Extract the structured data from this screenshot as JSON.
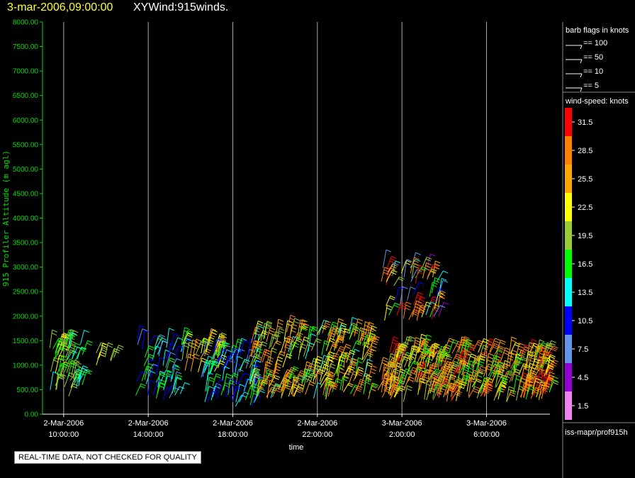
{
  "header": {
    "date": "3-mar-2006,09:00:00",
    "title": "XYWind:915winds."
  },
  "chart_data": {
    "type": "scatter",
    "title": "XYWind:915winds.",
    "xlabel": "time",
    "ylabel": "915 Profiler Altitude (m agl)",
    "ylim": [
      0,
      8000
    ],
    "y_ticks": [
      "0.00",
      "500.00",
      "1000.00",
      "1500.00",
      "2000.00",
      "2500.00",
      "3000.00",
      "3500.00",
      "4000.00",
      "4500.00",
      "5000.00",
      "5500.00",
      "6000.00",
      "6500.00",
      "7000.00",
      "7500.00",
      "8000.00"
    ],
    "x_ticks": [
      {
        "date": "2-Mar-2006",
        "time": "10:00:00"
      },
      {
        "date": "2-Mar-2006",
        "time": "14:00:00"
      },
      {
        "date": "2-Mar-2006",
        "time": "18:00:00"
      },
      {
        "date": "2-Mar-2006",
        "time": "22:00:00"
      },
      {
        "date": "3-Mar-2006",
        "time": "2:00:00"
      },
      {
        "date": "3-Mar-2006",
        "time": "6:00:00"
      }
    ],
    "xlim_hours": [
      9.0,
      33.0
    ],
    "grid": "vertical lines at x ticks",
    "series_note": "wind barbs colored by wind-speed (knots)",
    "samples": [
      {
        "hour": 9.5,
        "alt": [
          400,
          1400
        ],
        "speed": "14-22"
      },
      {
        "hour": 10.5,
        "alt": [
          900,
          1300
        ],
        "speed": "19-25"
      },
      {
        "hour": 14.0,
        "alt": [
          300,
          1700
        ],
        "speed": "10-16"
      },
      {
        "hour": 18.0,
        "alt": [
          150,
          1400
        ],
        "speed": "8-19"
      },
      {
        "hour": 22.0,
        "alt": [
          300,
          1800
        ],
        "speed": "16-29"
      },
      {
        "hour": 26.0,
        "alt": [
          200,
          3000
        ],
        "speed": "5-32"
      },
      {
        "hour": 30.0,
        "alt": [
          200,
          1500
        ],
        "speed": "16-32"
      }
    ]
  },
  "barb_legend": {
    "title": "barb flags in knots",
    "items": [
      "== 100",
      "== 50",
      "== 10",
      "== 5"
    ]
  },
  "colorbar": {
    "title": "wind-speed: knots",
    "levels": [
      {
        "label": "31.5",
        "color": "#ff0000"
      },
      {
        "label": "28.5",
        "color": "#ff7f00"
      },
      {
        "label": "25.5",
        "color": "#ffa500"
      },
      {
        "label": "22.5",
        "color": "#ffff00"
      },
      {
        "label": "19.5",
        "color": "#9acd32"
      },
      {
        "label": "16.5",
        "color": "#00ff00"
      },
      {
        "label": "13.5",
        "color": "#00ffff"
      },
      {
        "label": "10.5",
        "color": "#0000ff"
      },
      {
        "label": "7.5",
        "color": "#6495ed"
      },
      {
        "label": "4.5",
        "color": "#9400d3"
      },
      {
        "label": "1.5",
        "color": "#ee82ee"
      }
    ]
  },
  "footer": {
    "notice": "REAL-TIME DATA, NOT CHECKED FOR QUALITY",
    "source": "iss-mapr/prof915h"
  }
}
